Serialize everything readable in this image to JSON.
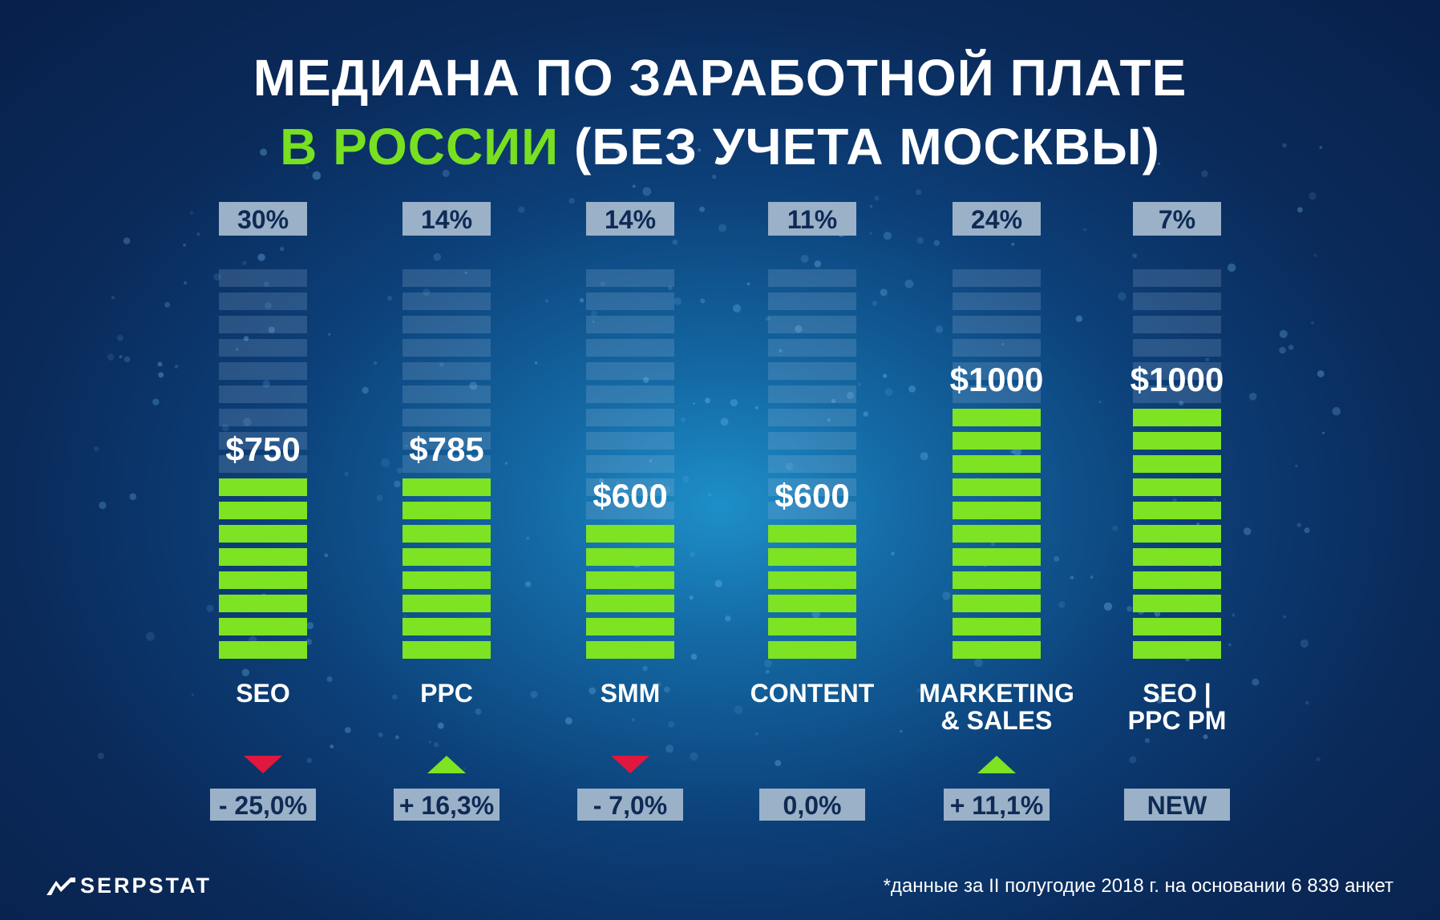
{
  "header": {
    "title_line1": "МЕДИАНА ПО ЗАРАБОТНОЙ ПЛАТЕ",
    "title_line2_highlight": "В РОССИИ",
    "title_line2_rest": " (БЕЗ УЧЕТА МОСКВЫ)"
  },
  "chart_data": {
    "type": "bar",
    "categories": [
      "SEO",
      "PPC",
      "SMM",
      "CONTENT",
      "MARKETING & SALES",
      "SEO | PPC PM"
    ],
    "category_lines": [
      [
        "SEO"
      ],
      [
        "PPC"
      ],
      [
        "SMM"
      ],
      [
        "CONTENT"
      ],
      [
        "MARKETING",
        "& SALES"
      ],
      [
        "SEO |",
        "PPC PM"
      ]
    ],
    "values": [
      750,
      785,
      600,
      600,
      1000,
      1000
    ],
    "value_labels": [
      "$750",
      "$785",
      "$600",
      "$600",
      "$1000",
      "$1000"
    ],
    "shares": [
      "30%",
      "14%",
      "14%",
      "11%",
      "24%",
      "7%"
    ],
    "changes": [
      "- 25,0%",
      "+ 16,3%",
      "- 7,0%",
      "0,0%",
      "+ 11,1%",
      "NEW"
    ],
    "change_direction": [
      "down",
      "up",
      "down",
      "none",
      "up",
      "none"
    ],
    "unit": "$",
    "ylim": [
      0,
      1600
    ],
    "colors": {
      "bar": "#7de322",
      "up": "#7de322",
      "down": "#e0173e",
      "title_highlight": "#78e020"
    }
  },
  "footer": {
    "logo": "SERPSTAT",
    "logo_icon": "serpstat-logo-icon",
    "note": "*данные за II полугодие 2018 г. на основании 6 839 анкет"
  }
}
